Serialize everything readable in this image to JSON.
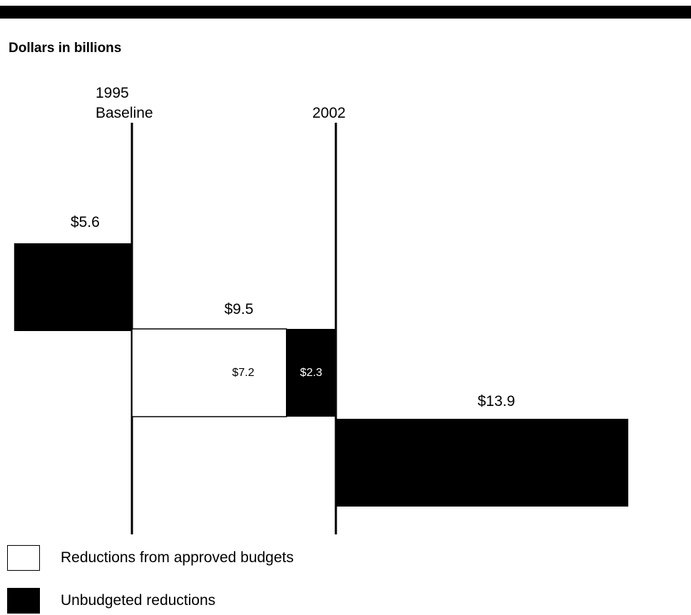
{
  "units_label": "Dollars in billions",
  "chart_data": {
    "type": "bar",
    "periods": [
      {
        "label_line1": "1995",
        "label_line2": "Baseline"
      },
      {
        "label_line1": "",
        "label_line2": "2002"
      }
    ],
    "bars": [
      {
        "name": "pre-1995",
        "category": "Unbudgeted reductions",
        "value": 5.6,
        "label": "$5.6"
      },
      {
        "name": "1995-2002 approved",
        "category": "Reductions from approved budgets",
        "value": 7.2,
        "label": "$7.2"
      },
      {
        "name": "1995-2002 unbudgeted",
        "category": "Unbudgeted reductions",
        "value": 2.3,
        "label": "$2.3"
      },
      {
        "name": "post-2002",
        "category": "Unbudgeted reductions",
        "value": 13.9,
        "label": "$13.9"
      }
    ],
    "totals": [
      {
        "name": "1995-2002 total",
        "value": 9.5,
        "label": "$9.5"
      }
    ],
    "colors": {
      "approved": "#ffffff",
      "unbudgeted": "#000000"
    }
  },
  "legend": {
    "items": [
      {
        "label": "Reductions from approved budgets",
        "color": "#ffffff"
      },
      {
        "label": "Unbudgeted reductions",
        "color": "#000000"
      }
    ]
  }
}
